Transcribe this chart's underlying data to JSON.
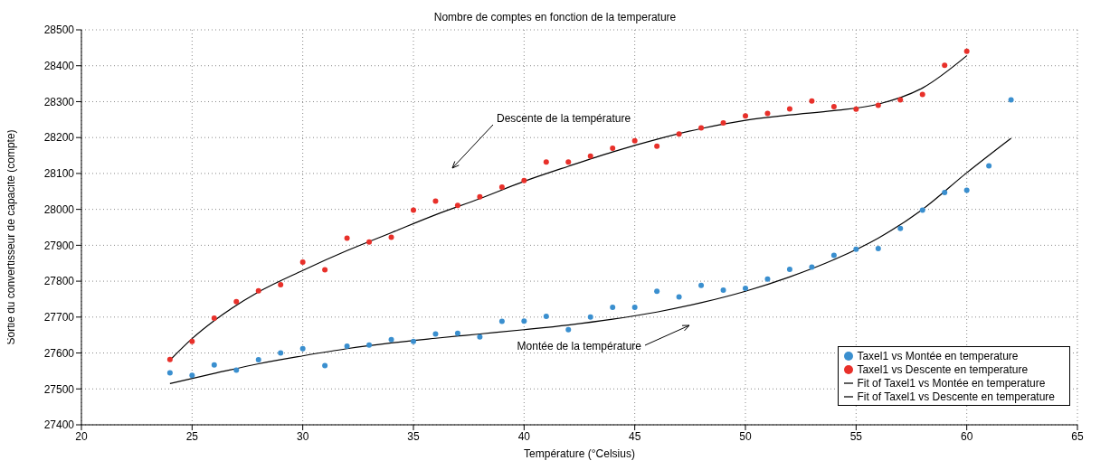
{
  "chart_data": {
    "type": "scatter",
    "title": "Nombre de comptes en fonction de la temperature",
    "xlabel": "Température (°Celsius)",
    "ylabel": "Sortie du convertisseur de capacité (compte)",
    "xlim": [
      20,
      65
    ],
    "xticks": [
      20,
      25,
      30,
      35,
      40,
      45,
      50,
      55,
      60,
      65
    ],
    "ylim": [
      27400,
      28500
    ],
    "yticks": [
      27400,
      27500,
      27600,
      27700,
      27800,
      27900,
      28000,
      28100,
      28200,
      28300,
      28400,
      28500
    ],
    "grid": true,
    "legend": "bottom right",
    "marker": "circle",
    "line_style": "solid",
    "annotations": [
      "Descente de la température",
      "Montée de la température"
    ],
    "series": [
      {
        "name": "Taxel1 vs Montée en temperature",
        "color": "#3a8fcf",
        "x": [
          24,
          25,
          26,
          27,
          28,
          29,
          30,
          31,
          32,
          33,
          34,
          35,
          36,
          37,
          38,
          39,
          40,
          41,
          42,
          43,
          44,
          45,
          46,
          47,
          48,
          49,
          50,
          51,
          52,
          53,
          54,
          55,
          56,
          57,
          58,
          59,
          60,
          61,
          62
        ],
        "values": [
          27545,
          27538,
          27567,
          27552,
          27581,
          27600,
          27612,
          27565,
          27619,
          27622,
          27637,
          27632,
          27653,
          27655,
          27645,
          27688,
          27689,
          27702,
          27665,
          27700,
          27727,
          27727,
          27772,
          27756,
          27788,
          27775,
          27780,
          27806,
          27833,
          27839,
          27872,
          27889,
          27891,
          27947,
          27998,
          28047,
          28053,
          28121,
          28305
        ]
      },
      {
        "name": "Taxel1 vs Descente en temperature",
        "color": "#e8302a",
        "x": [
          24,
          25,
          26,
          27,
          28,
          29,
          30,
          31,
          32,
          33,
          34,
          35,
          36,
          37,
          38,
          39,
          40,
          41,
          42,
          43,
          44,
          45,
          46,
          47,
          48,
          49,
          50,
          51,
          52,
          53,
          54,
          55,
          56,
          57,
          58,
          59,
          60
        ],
        "values": [
          27582,
          27632,
          27697,
          27743,
          27773,
          27790,
          27853,
          27832,
          27920,
          27909,
          27922,
          27998,
          28023,
          28011,
          28035,
          28062,
          28080,
          28132,
          28132,
          28148,
          28170,
          28191,
          28176,
          28210,
          28227,
          28241,
          28260,
          28267,
          28280,
          28302,
          28286,
          28279,
          28290,
          28305,
          28320,
          28401,
          28440
        ]
      },
      {
        "name": "Fit of Taxel1 vs Montée en temperature",
        "type": "line",
        "marker": "none",
        "color": "#000000",
        "x": [
          24,
          26,
          28,
          30,
          32,
          34,
          36,
          38,
          40,
          42,
          44,
          46,
          48,
          50,
          52,
          54,
          56,
          58,
          60,
          62
        ],
        "values": [
          27515,
          27543,
          27570,
          27592,
          27612,
          27628,
          27641,
          27653,
          27665,
          27678,
          27694,
          27714,
          27740,
          27772,
          27812,
          27860,
          27920,
          28000,
          28102,
          28198
        ]
      },
      {
        "name": "Fit of Taxel1 vs Descente en temperature",
        "type": "line",
        "marker": "none",
        "color": "#000000",
        "x": [
          24,
          25,
          26,
          28,
          30,
          32,
          34,
          36,
          38,
          40,
          42,
          44,
          46,
          48,
          50,
          52,
          54,
          56,
          58,
          60
        ],
        "values": [
          27580,
          27640,
          27690,
          27770,
          27830,
          27885,
          27935,
          27985,
          28030,
          28078,
          28120,
          28160,
          28195,
          28225,
          28248,
          28263,
          28275,
          28293,
          28338,
          28428
        ]
      }
    ]
  }
}
